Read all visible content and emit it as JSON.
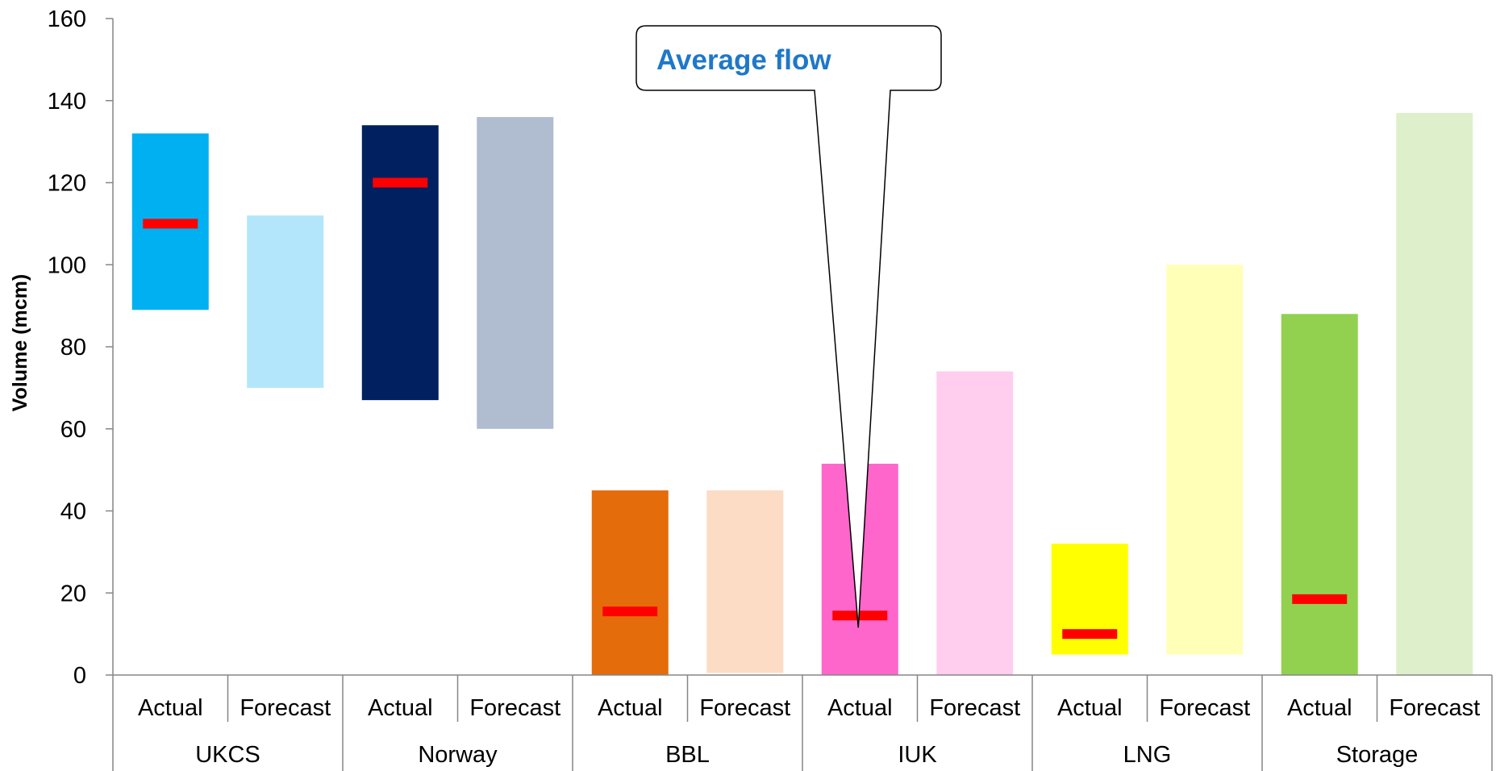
{
  "chart_data": {
    "type": "bar",
    "subtype": "floating-range",
    "title": "",
    "xlabel": "",
    "ylabel": "Volume (mcm)",
    "ylim": [
      0,
      160
    ],
    "yticks": [
      0,
      20,
      40,
      60,
      80,
      100,
      120,
      140,
      160
    ],
    "grid": false,
    "groups": [
      "UKCS",
      "Norway",
      "BBL",
      "IUK",
      "LNG",
      "Storage"
    ],
    "categories": [
      {
        "group": "UKCS",
        "label": "Actual",
        "low": 89,
        "high": 132,
        "average": 110,
        "color": "#00b0f0"
      },
      {
        "group": "UKCS",
        "label": "Forecast",
        "low": 70,
        "high": 112,
        "average": null,
        "color": "#b3e6fa"
      },
      {
        "group": "Norway",
        "label": "Actual",
        "low": 67,
        "high": 134,
        "average": 120,
        "color": "#002060"
      },
      {
        "group": "Norway",
        "label": "Forecast",
        "low": 60,
        "high": 136,
        "average": null,
        "color": "#b0bccf"
      },
      {
        "group": "BBL",
        "label": "Actual",
        "low": 0,
        "high": 45,
        "average": 15.5,
        "color": "#e46c0a"
      },
      {
        "group": "BBL",
        "label": "Forecast",
        "low": 0.5,
        "high": 45,
        "average": null,
        "color": "#fcdcc5"
      },
      {
        "group": "IUK",
        "label": "Actual",
        "low": 0,
        "high": 51.5,
        "average": 14.5,
        "color": "#ff66cc"
      },
      {
        "group": "IUK",
        "label": "Forecast",
        "low": 0,
        "high": 74,
        "average": null,
        "color": "#ffcdee"
      },
      {
        "group": "LNG",
        "label": "Actual",
        "low": 5,
        "high": 32,
        "average": 10,
        "color": "#ffff00"
      },
      {
        "group": "LNG",
        "label": "Forecast",
        "low": 5,
        "high": 100,
        "average": null,
        "color": "#ffffb8"
      },
      {
        "group": "Storage",
        "label": "Actual",
        "low": 0,
        "high": 88,
        "average": 18.5,
        "color": "#92d050"
      },
      {
        "group": "Storage",
        "label": "Forecast",
        "low": 0,
        "high": 137,
        "average": null,
        "color": "#def0cb"
      }
    ],
    "average_marker_color": "#ff0000",
    "annotation": {
      "text": "Average flow",
      "points_to": "IUK Actual average"
    }
  }
}
